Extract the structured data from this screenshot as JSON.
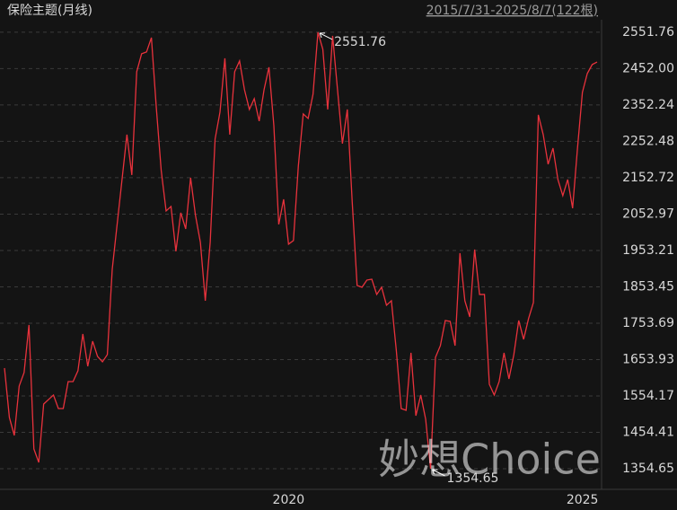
{
  "chart_data": {
    "type": "line",
    "title": "保险主题(月线)",
    "range_label": "2015/7/31-2025/8/7(122根)",
    "watermark": "妙想Choice",
    "categories": [
      null,
      null,
      null,
      null,
      null,
      null,
      null,
      null,
      null,
      null,
      null,
      null,
      null,
      null,
      null,
      null,
      null,
      null,
      null,
      null,
      null,
      null,
      null,
      null,
      null,
      null,
      null,
      null,
      null,
      null,
      null,
      null,
      null,
      null,
      null,
      null,
      null,
      null,
      null,
      null,
      null,
      null,
      null,
      null,
      null,
      null,
      null,
      null,
      null,
      null,
      null,
      null,
      null,
      null,
      null,
      null,
      null,
      null,
      "2020",
      null,
      null,
      null,
      null,
      null,
      null,
      null,
      null,
      null,
      null,
      null,
      null,
      null,
      null,
      null,
      null,
      null,
      null,
      null,
      null,
      null,
      null,
      null,
      null,
      null,
      null,
      null,
      null,
      null,
      null,
      null,
      null,
      null,
      null,
      null,
      null,
      null,
      null,
      null,
      null,
      null,
      null,
      null,
      null,
      null,
      null,
      null,
      null,
      null,
      null,
      null,
      null,
      null,
      null,
      null,
      null,
      null,
      null,
      null,
      "2025",
      null,
      null,
      null
    ],
    "values": [
      1630.5,
      1495.1,
      1445.8,
      1581.3,
      1618.2,
      1748.8,
      1408.9,
      1371.9,
      1532.0,
      1544.4,
      1556.7,
      1519.7,
      1519.7,
      1593.6,
      1593.6,
      1623.2,
      1724.2,
      1635.5,
      1704.5,
      1662.6,
      1647.8,
      1667.5,
      1901.5,
      2024.7,
      2147.8,
      2271.0,
      2160.2,
      2443.4,
      2492.7,
      2497.6,
      2537.0,
      2344.9,
      2172.5,
      2061.6,
      2073.9,
      1950.8,
      2056.7,
      2012.4,
      2152.8,
      2049.3,
      1975.4,
      1815.3,
      1975.4,
      2258.7,
      2332.6,
      2480.4,
      2271.0,
      2443.4,
      2473.0,
      2394.2,
      2340.0,
      2369.5,
      2307.9,
      2394.2,
      2455.7,
      2295.6,
      2024.7,
      2093.6,
      1970.5,
      1980.3,
      2184.8,
      2327.6,
      2315.3,
      2381.8,
      2551.76,
      2505.0,
      2340.0,
      2541.9,
      2394.2,
      2246.4,
      2340.0,
      2086.3,
      1857.2,
      1852.3,
      1872.0,
      1874.4,
      1832.5,
      1852.3,
      1803.0,
      1815.3,
      1679.8,
      1519.7,
      1514.8,
      1672.4,
      1500.0,
      1556.7,
      1490.2,
      1354.65,
      1660.1,
      1692.1,
      1761.1,
      1758.6,
      1692.1,
      1945.8,
      1815.3,
      1771.0,
      1955.7,
      1832.5,
      1832.5,
      1586.2,
      1556.7,
      1593.6,
      1672.4,
      1601.0,
      1667.5,
      1761.1,
      1709.4,
      1766.0,
      1810.4,
      2325.2,
      2271.0,
      2189.7,
      2234.0,
      2147.8,
      2103.5,
      2147.8,
      2069.0,
      2234.0,
      2386.8,
      2438.5,
      2463.1,
      2470.0
    ],
    "color": "#e8323c",
    "annotations": [
      {
        "index": 64,
        "label": "2551.76"
      },
      {
        "index": 87,
        "label": "1354.65"
      }
    ],
    "ylim": [
      1298,
      2586
    ],
    "yticks": [
      2551.76,
      {
        "value": 2452,
        "label": "2452.00"
      },
      2352.24,
      2252.48,
      2152.72,
      2052.97,
      1953.21,
      1853.45,
      1753.69,
      1653.93,
      1554.17,
      1454.41,
      1354.65
    ],
    "grid": true
  }
}
